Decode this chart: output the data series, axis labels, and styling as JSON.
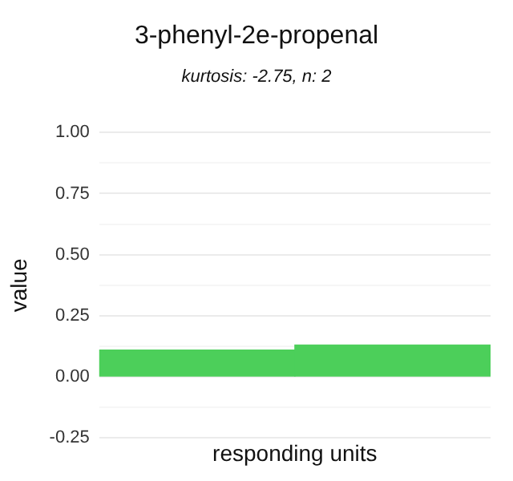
{
  "chart_data": {
    "type": "bar",
    "title": "3-phenyl-2e-propenal",
    "subtitle": "kurtosis: -2.75, n: 2",
    "xlabel": "responding units",
    "ylabel": "value",
    "categories": [
      null,
      null
    ],
    "values": [
      0.11,
      0.13
    ],
    "color": "#4ccf5a",
    "ylim": [
      -0.25,
      1
    ],
    "yticks": [
      {
        "value": -0.25,
        "label": "-0.25"
      },
      {
        "value": -0.125,
        "label": null
      },
      {
        "value": 0,
        "label": "0.00"
      },
      {
        "value": 0.125,
        "label": null
      },
      {
        "value": 0.25,
        "label": "0.25"
      },
      {
        "value": 0.375,
        "label": null
      },
      {
        "value": 0.5,
        "label": "0.50"
      },
      {
        "value": 0.625,
        "label": null
      },
      {
        "value": 0.75,
        "label": "0.75"
      },
      {
        "value": 0.875,
        "label": null
      },
      {
        "value": 1,
        "label": "1.00"
      }
    ],
    "grid": "y"
  }
}
